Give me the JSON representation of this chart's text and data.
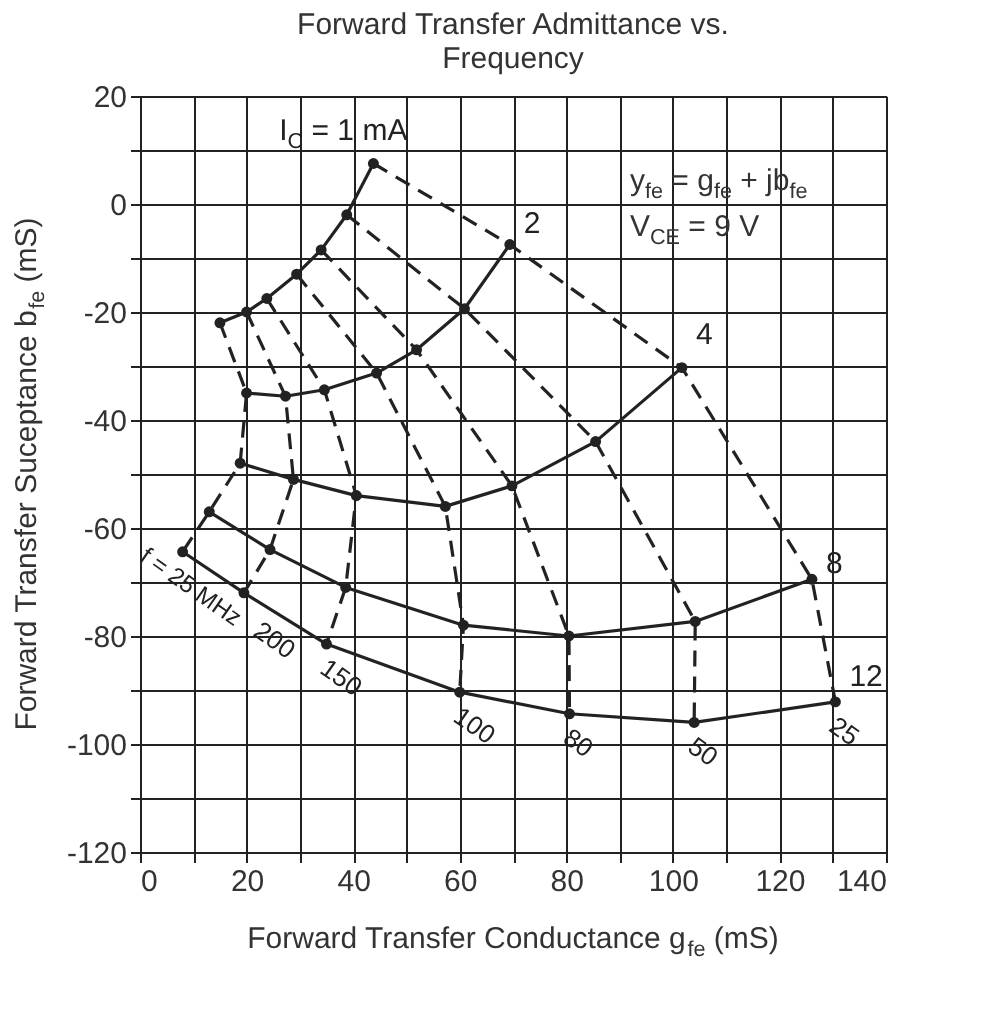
{
  "chart_data": {
    "type": "line",
    "title": "Forward Transfer Admittance vs.\nFrequency",
    "xlabel": "Forward Transfer Conductance g$_{fe}$ (mS)",
    "ylabel": "Forward Transfer Suceptance b$_{fe}$ (mS)",
    "xlim": [
      0,
      140
    ],
    "xticks": [
      0,
      {
        "value": 10,
        "label": null
      },
      20,
      {
        "value": 30,
        "label": null
      },
      40,
      {
        "value": 50,
        "label": null
      },
      60,
      {
        "value": 70,
        "label": null
      },
      80,
      {
        "value": 90,
        "label": null
      },
      100,
      {
        "value": 110,
        "label": null
      },
      120,
      {
        "value": 130,
        "label": null
      },
      140
    ],
    "ylim": [
      -120,
      20
    ],
    "yticks": [
      -120,
      {
        "value": -110,
        "label": null
      },
      -100,
      {
        "value": -90,
        "label": null
      },
      -80,
      {
        "value": -70,
        "label": null
      },
      -60,
      {
        "value": -50,
        "label": null
      },
      -40,
      {
        "value": -30,
        "label": null
      },
      -20,
      {
        "value": -10,
        "label": null
      },
      0,
      {
        "value": 10,
        "label": null
      },
      20
    ],
    "grid": true,
    "annotations": [
      "y$_{fe}$ = g$_{fe}$ + jb$_{fe}$",
      "V$_{CE}$ = 9 V"
    ],
    "series": [
      {
        "name": "I$_{C}$ = 1 mA",
        "color": "#222222",
        "line_style": "solid",
        "marker": "circle",
        "x": [
          15,
          20,
          23.8,
          29.4,
          34,
          38.8,
          43.8
        ],
        "values": [
          -22,
          -20,
          -17.5,
          -13,
          -8.5,
          -2,
          7.5
        ]
      },
      {
        "name": "2",
        "color": "#222222",
        "line_style": "solid",
        "marker": "circle",
        "x": [
          20,
          27.3,
          34.6,
          44.4,
          51.9,
          60.9,
          69.4
        ],
        "values": [
          -35,
          -35.6,
          -34.4,
          -31.3,
          -27,
          -19.4,
          -7.5
        ]
      },
      {
        "name": "4",
        "color": "#222222",
        "line_style": "solid",
        "marker": "circle",
        "x": [
          18.8,
          28.8,
          40.6,
          57.3,
          69.8,
          85.5,
          101.7
        ],
        "values": [
          -48,
          -51,
          -54,
          -56,
          -52.2,
          -44,
          -30.3
        ]
      },
      {
        "name": "8",
        "color": "#222222",
        "line_style": "solid",
        "marker": "circle",
        "x": [
          13,
          24.4,
          38.6,
          60.7,
          80.5,
          104.2,
          126.1
        ],
        "values": [
          -57,
          -64,
          -71,
          -78,
          -80,
          -77.3,
          -69.5
        ]
      },
      {
        "name": "12",
        "color": "#222222",
        "line_style": "solid",
        "marker": "circle",
        "x": [
          8,
          19.5,
          35,
          60,
          80.6,
          104,
          130.5
        ],
        "values": [
          -64.4,
          -72,
          -81.5,
          -90.4,
          -94.4,
          -96,
          -92.2
        ]
      },
      {
        "name": "f = 25 MHz",
        "color": "#222222",
        "line_style": "dashed",
        "x": [
          15,
          20,
          18.8,
          13,
          8
        ],
        "values": [
          -22,
          -35,
          -48,
          -57,
          -64.4
        ]
      },
      {
        "name": "200",
        "color": "#222222",
        "line_style": "dashed",
        "x": [
          20,
          27.3,
          28.8,
          24.4,
          19.5
        ],
        "values": [
          -20,
          -35.6,
          -51,
          -64,
          -72
        ]
      },
      {
        "name": "150",
        "color": "#222222",
        "line_style": "dashed",
        "x": [
          23.8,
          34.6,
          40.6,
          38.6,
          35
        ],
        "values": [
          -17.5,
          -34.4,
          -54,
          -71,
          -81.5
        ]
      },
      {
        "name": "100",
        "color": "#222222",
        "line_style": "dashed",
        "x": [
          29.4,
          44.4,
          57.3,
          60.7,
          60
        ],
        "values": [
          -13,
          -31.3,
          -56,
          -78,
          -90.4
        ]
      },
      {
        "name": "80",
        "color": "#222222",
        "line_style": "dashed",
        "x": [
          34,
          51.9,
          69.8,
          80.5,
          80.6
        ],
        "values": [
          -8.5,
          -27,
          -52.2,
          -80,
          -94.4
        ]
      },
      {
        "name": "50",
        "color": "#222222",
        "line_style": "dashed",
        "x": [
          38.8,
          60.9,
          85.5,
          104.2,
          104
        ],
        "values": [
          -2,
          -19.4,
          -44,
          -77.3,
          -96
        ]
      },
      {
        "name": "25",
        "color": "#222222",
        "line_style": "dashed",
        "x": [
          43.8,
          69.4,
          101.7,
          126.1,
          130.5
        ],
        "values": [
          7.5,
          -7.5,
          -30.3,
          -69.5,
          -92.2
        ]
      }
    ]
  }
}
